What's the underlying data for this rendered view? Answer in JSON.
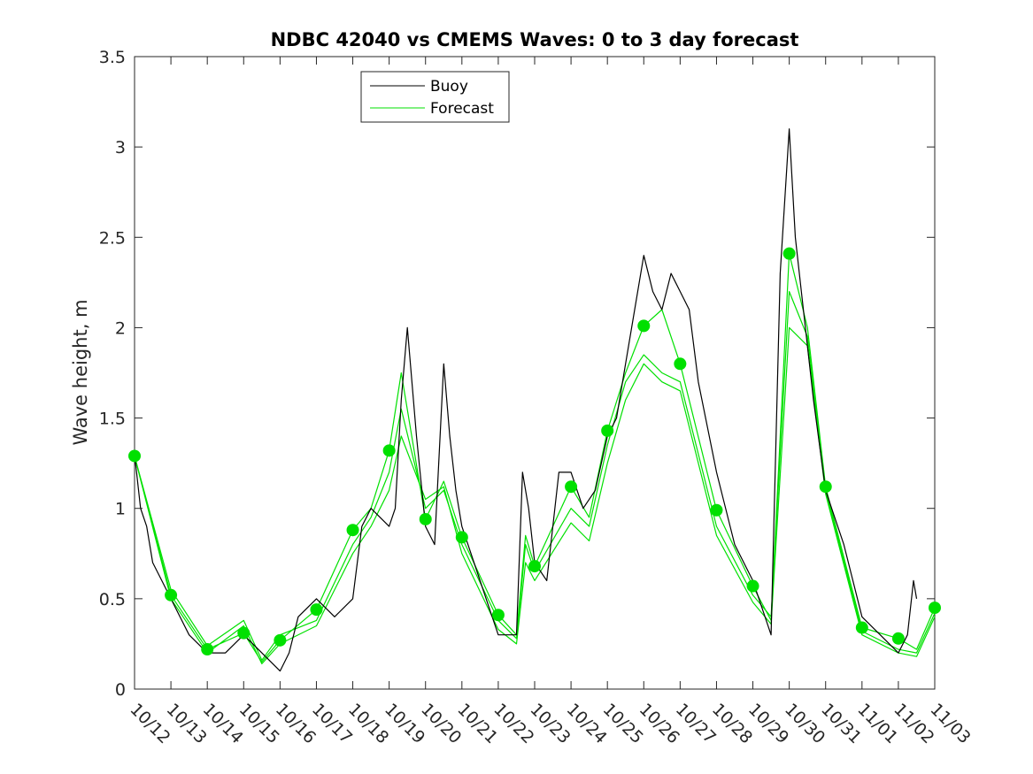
{
  "chart_data": {
    "type": "line",
    "title": "NDBC 42040 vs CMEMS Waves: 0 to 3 day forecast",
    "xlabel": "",
    "ylabel": "Wave height, m",
    "ylim": [
      0,
      3.5
    ],
    "yticks": [
      "0",
      "0.5",
      "1",
      "1.5",
      "2",
      "2.5",
      "3",
      "3.5"
    ],
    "xlim": [
      "10/12",
      "11/03"
    ],
    "xticks": [
      "10/12",
      "10/13",
      "10/14",
      "10/15",
      "10/16",
      "10/17",
      "10/18",
      "10/19",
      "10/20",
      "10/21",
      "10/22",
      "10/23",
      "10/24",
      "10/25",
      "10/26",
      "10/27",
      "10/28",
      "10/29",
      "10/30",
      "10/31",
      "11/01",
      "11/02",
      "11/03"
    ],
    "grid": false,
    "legend_position": "top-center",
    "legend": [
      {
        "label": "Buoy",
        "color": "#000000"
      },
      {
        "label": "Forecast",
        "color": "#00e000"
      }
    ],
    "series": [
      {
        "name": "Buoy",
        "color": "#000000",
        "x": [
          "10/12 00:00",
          "10/12 04:00",
          "10/12 08:00",
          "10/12 12:00",
          "10/12 18:00",
          "10/13 00:00",
          "10/13 12:00",
          "10/14 00:00",
          "10/14 12:00",
          "10/15 00:00",
          "10/15 12:00",
          "10/16 00:00",
          "10/16 06:00",
          "10/16 12:00",
          "10/17 00:00",
          "10/17 12:00",
          "10/18 00:00",
          "10/18 06:00",
          "10/18 12:00",
          "10/19 00:00",
          "10/19 04:00",
          "10/19 08:00",
          "10/19 12:00",
          "10/19 18:00",
          "10/20 00:00",
          "10/20 06:00",
          "10/20 12:00",
          "10/20 16:00",
          "10/20 20:00",
          "10/21 00:00",
          "10/21 08:00",
          "10/21 16:00",
          "10/22 00:00",
          "10/22 12:00",
          "10/22 16:00",
          "10/22 20:00",
          "10/23 00:00",
          "10/23 08:00",
          "10/23 16:00",
          "10/24 00:00",
          "10/24 08:00",
          "10/24 16:00",
          "10/25 00:00",
          "10/25 06:00",
          "10/25 12:00",
          "10/25 18:00",
          "10/26 00:00",
          "10/26 06:00",
          "10/26 12:00",
          "10/26 18:00",
          "10/27 00:00",
          "10/27 06:00",
          "10/27 12:00",
          "10/28 00:00",
          "10/28 12:00",
          "10/29 00:00",
          "10/29 12:00",
          "10/29 18:00",
          "10/30 00:00",
          "10/30 04:00",
          "10/30 08:00",
          "10/30 16:00",
          "10/31 00:00",
          "10/31 12:00",
          "11/01 00:00",
          "11/01 12:00",
          "11/02 00:00",
          "11/02 06:00",
          "11/02 10:00",
          "11/02 12:00"
        ],
        "y": [
          1.3,
          1.0,
          0.9,
          0.7,
          0.6,
          0.5,
          0.3,
          0.2,
          0.2,
          0.3,
          0.2,
          0.1,
          0.2,
          0.4,
          0.5,
          0.4,
          0.5,
          0.9,
          1.0,
          0.9,
          1.0,
          1.6,
          2.0,
          1.4,
          0.9,
          0.8,
          1.8,
          1.4,
          1.1,
          0.9,
          0.7,
          0.5,
          0.3,
          0.3,
          1.2,
          1.0,
          0.7,
          0.6,
          1.2,
          1.2,
          1.0,
          1.1,
          1.4,
          1.5,
          1.8,
          2.1,
          2.4,
          2.2,
          2.1,
          2.3,
          2.2,
          2.1,
          1.7,
          1.2,
          0.8,
          0.6,
          0.3,
          2.3,
          3.1,
          2.5,
          2.2,
          1.6,
          1.1,
          0.8,
          0.4,
          0.3,
          0.2,
          0.3,
          0.6,
          0.5
        ]
      },
      {
        "name": "Forecast",
        "color": "#00e000",
        "x": [
          "10/12 00:00",
          "10/13 00:00",
          "10/14 00:00",
          "10/15 00:00",
          "10/15 12:00",
          "10/16 00:00",
          "10/17 00:00",
          "10/18 00:00",
          "10/18 12:00",
          "10/19 00:00",
          "10/19 08:00",
          "10/20 00:00",
          "10/20 12:00",
          "10/21 00:00",
          "10/22 00:00",
          "10/22 12:00",
          "10/22 18:00",
          "10/23 00:00",
          "10/24 00:00",
          "10/24 12:00",
          "10/25 00:00",
          "10/25 12:00",
          "10/26 00:00",
          "10/26 12:00",
          "10/27 00:00",
          "10/28 00:00",
          "10/29 00:00",
          "10/29 12:00",
          "10/30 00:00",
          "10/30 12:00",
          "10/31 00:00",
          "11/01 00:00",
          "11/02 00:00",
          "11/02 12:00",
          "11/03 00:00"
        ],
        "y": [
          1.29,
          0.52,
          0.22,
          0.31,
          0.15,
          0.27,
          0.44,
          0.88,
          1.0,
          1.32,
          1.75,
          0.94,
          1.15,
          0.84,
          0.41,
          0.3,
          0.85,
          0.68,
          1.12,
          0.95,
          1.43,
          1.75,
          2.01,
          2.1,
          1.8,
          0.99,
          0.57,
          0.38,
          2.41,
          2.0,
          1.12,
          0.34,
          0.28,
          0.22,
          0.45
        ]
      },
      {
        "name": "",
        "color": "#00e000",
        "x": [
          "10/12 00:00",
          "10/13 00:00",
          "10/14 00:00",
          "10/15 00:00",
          "10/15 12:00",
          "10/16 00:00",
          "10/17 00:00",
          "10/18 00:00",
          "10/18 12:00",
          "10/19 00:00",
          "10/19 08:00",
          "10/20 00:00",
          "10/20 12:00",
          "10/21 00:00",
          "10/22 00:00",
          "10/22 12:00",
          "10/22 18:00",
          "10/23 00:00",
          "10/24 00:00",
          "10/24 12:00",
          "10/25 00:00",
          "10/25 12:00",
          "10/26 00:00",
          "10/26 12:00",
          "10/27 00:00",
          "10/28 00:00",
          "10/29 00:00",
          "10/29 12:00",
          "10/30 00:00",
          "10/30 12:00",
          "10/31 00:00",
          "11/01 00:00",
          "11/02 00:00",
          "11/02 12:00",
          "11/03 00:00"
        ],
        "y": [
          1.29,
          0.55,
          0.24,
          0.38,
          0.16,
          0.3,
          0.38,
          0.8,
          0.95,
          1.2,
          1.55,
          1.0,
          1.1,
          0.8,
          0.38,
          0.28,
          0.8,
          0.65,
          1.0,
          0.9,
          1.35,
          1.7,
          1.85,
          1.75,
          1.7,
          0.9,
          0.52,
          0.4,
          2.2,
          1.95,
          1.1,
          0.32,
          0.22,
          0.2,
          0.42
        ]
      },
      {
        "name": "",
        "color": "#00e000",
        "x": [
          "10/12 00:00",
          "10/13 00:00",
          "10/14 00:00",
          "10/15 00:00",
          "10/15 12:00",
          "10/16 00:00",
          "10/17 00:00",
          "10/18 00:00",
          "10/18 12:00",
          "10/19 00:00",
          "10/19 08:00",
          "10/20 00:00",
          "10/20 12:00",
          "10/21 00:00",
          "10/22 00:00",
          "10/22 12:00",
          "10/22 18:00",
          "10/23 00:00",
          "10/24 00:00",
          "10/24 12:00",
          "10/25 00:00",
          "10/25 12:00",
          "10/26 00:00",
          "10/26 12:00",
          "10/27 00:00",
          "10/28 00:00",
          "10/29 00:00",
          "10/29 12:00",
          "10/30 00:00",
          "10/30 12:00",
          "10/31 00:00",
          "11/01 00:00",
          "11/02 00:00",
          "11/02 12:00",
          "11/03 00:00"
        ],
        "y": [
          1.29,
          0.5,
          0.2,
          0.35,
          0.14,
          0.25,
          0.35,
          0.75,
          0.9,
          1.1,
          1.4,
          1.05,
          1.12,
          0.75,
          0.33,
          0.25,
          0.7,
          0.6,
          0.92,
          0.82,
          1.25,
          1.6,
          1.8,
          1.7,
          1.65,
          0.85,
          0.48,
          0.36,
          2.0,
          1.9,
          1.08,
          0.3,
          0.2,
          0.18,
          0.4
        ]
      }
    ]
  }
}
